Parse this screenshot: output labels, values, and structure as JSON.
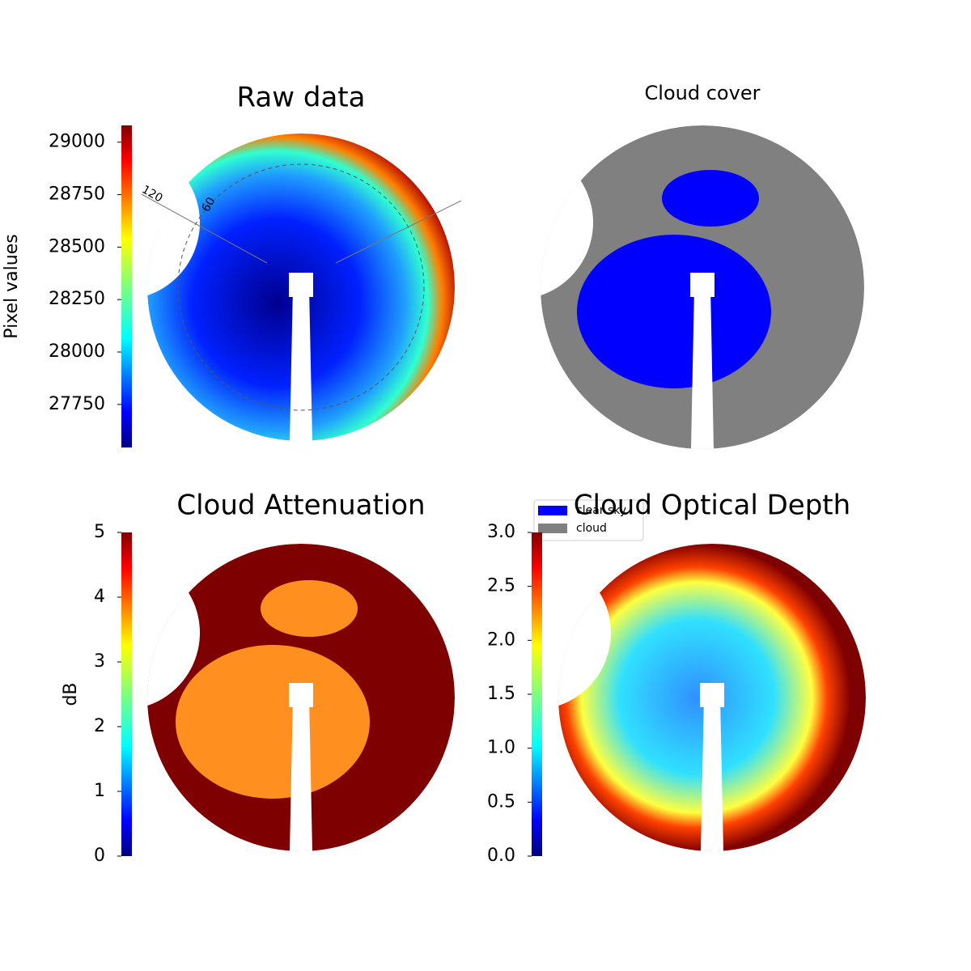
{
  "chart_data": [
    {
      "type": "image",
      "title": "Raw data",
      "colorbar_label": "Pixel values",
      "clim": [
        27545,
        29080
      ],
      "cticks": [
        27750,
        28000,
        28250,
        28500,
        28750,
        29000
      ],
      "colormap": "jet",
      "annotations": [
        "120",
        "60"
      ]
    },
    {
      "type": "image",
      "title": "Cloud cover",
      "series": [
        {
          "name": "clear sky",
          "color": "#0000ff"
        },
        {
          "name": "cloud",
          "color": "#808080"
        }
      ]
    },
    {
      "type": "image",
      "title": "Cloud Attenuation",
      "colorbar_label": "dB",
      "clim": [
        0,
        5
      ],
      "cticks": [
        0,
        1,
        2,
        3,
        4,
        5
      ],
      "colormap": "jet"
    },
    {
      "type": "image",
      "title": "Cloud Optical Depth",
      "clim": [
        0,
        3
      ],
      "cticks": [
        {
          "value": 0,
          "label": "0.0"
        },
        {
          "value": 0.5,
          "label": "0.5"
        },
        {
          "value": 1,
          "label": "1.0"
        },
        {
          "value": 1.5,
          "label": "1.5"
        },
        {
          "value": 2,
          "label": "2.0"
        },
        {
          "value": 2.5,
          "label": "2.5"
        },
        {
          "value": 3,
          "label": "3.0"
        }
      ],
      "colormap": "jet"
    }
  ]
}
